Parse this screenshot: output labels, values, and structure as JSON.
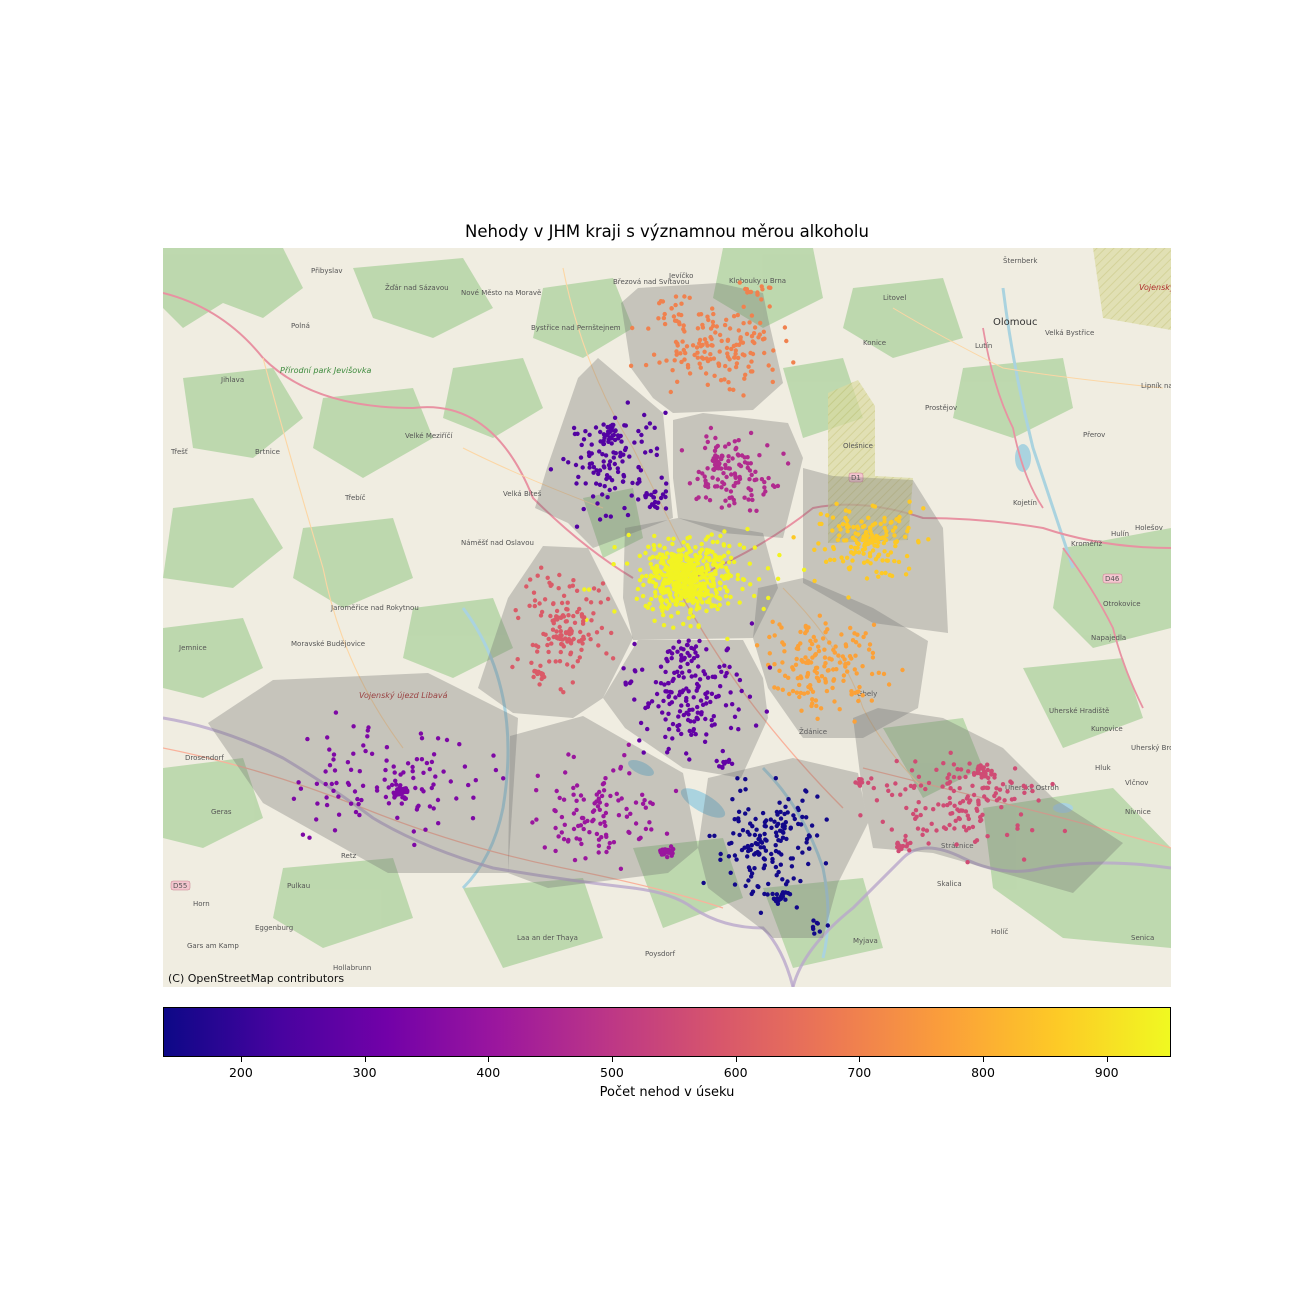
{
  "title": "Nehody v JHM kraji s významnou měrou alkoholu",
  "attribution": "(C) OpenStreetMap contributors",
  "colorbar": {
    "label": "Počet nehod v úseku",
    "min": 137,
    "max": 952,
    "ticks": [
      200,
      300,
      400,
      500,
      600,
      700,
      800,
      900
    ],
    "colormap": "plasma",
    "colors": [
      "#0d0887",
      "#46039f",
      "#7201a8",
      "#9c179e",
      "#bd3786",
      "#d8576b",
      "#ed7953",
      "#fb9f3a",
      "#fdca26",
      "#f0f921"
    ]
  },
  "map_labels": [
    {
      "text": "Přibyslav",
      "kind": "town"
    },
    {
      "text": "Žďár nad Sázavou",
      "kind": "town"
    },
    {
      "text": "Nové Město na Moravě",
      "kind": "town"
    },
    {
      "text": "Polná",
      "kind": "town"
    },
    {
      "text": "Bystřice nad Pernštejnem",
      "kind": "town"
    },
    {
      "text": "Jihlava",
      "kind": "town"
    },
    {
      "text": "Velké Meziříčí",
      "kind": "town"
    },
    {
      "text": "Brtnice",
      "kind": "town"
    },
    {
      "text": "Třešť",
      "kind": "town"
    },
    {
      "text": "Velká Bíteš",
      "kind": "town"
    },
    {
      "text": "Třebíč",
      "kind": "town"
    },
    {
      "text": "Náměšť nad Oslavou",
      "kind": "town"
    },
    {
      "text": "Jaroměřice nad Rokytnou",
      "kind": "town"
    },
    {
      "text": "Moravské Budějovice",
      "kind": "town"
    },
    {
      "text": "Jemnice",
      "kind": "town"
    },
    {
      "text": "Drosendorf",
      "kind": "town"
    },
    {
      "text": "Geras",
      "kind": "town"
    },
    {
      "text": "Retz",
      "kind": "town"
    },
    {
      "text": "Pulkau",
      "kind": "town"
    },
    {
      "text": "Horn",
      "kind": "town"
    },
    {
      "text": "Eggenburg",
      "kind": "town"
    },
    {
      "text": "Gars am Kamp",
      "kind": "town"
    },
    {
      "text": "Laa an der Thaya",
      "kind": "town"
    },
    {
      "text": "Poysdorf",
      "kind": "town"
    },
    {
      "text": "Hollabrunn",
      "kind": "town"
    },
    {
      "text": "Olomouc",
      "kind": "city"
    },
    {
      "text": "Šternberk",
      "kind": "town"
    },
    {
      "text": "Litovel",
      "kind": "town"
    },
    {
      "text": "Velká Bystřice",
      "kind": "town"
    },
    {
      "text": "Konice",
      "kind": "town"
    },
    {
      "text": "Lutín",
      "kind": "town"
    },
    {
      "text": "Prostějov",
      "kind": "town"
    },
    {
      "text": "Přerov",
      "kind": "town"
    },
    {
      "text": "Lipník nad Bečvou",
      "kind": "town"
    },
    {
      "text": "Kojetín",
      "kind": "town"
    },
    {
      "text": "Hulín",
      "kind": "town"
    },
    {
      "text": "Holešov",
      "kind": "town"
    },
    {
      "text": "Kroměříž",
      "kind": "town"
    },
    {
      "text": "Otrokovice",
      "kind": "town"
    },
    {
      "text": "Napajedla",
      "kind": "town"
    },
    {
      "text": "Uherské Hradiště",
      "kind": "town"
    },
    {
      "text": "Kunovice",
      "kind": "town"
    },
    {
      "text": "Uherský Brod",
      "kind": "town"
    },
    {
      "text": "Hluk",
      "kind": "town"
    },
    {
      "text": "Vlčnov",
      "kind": "town"
    },
    {
      "text": "Nivnice",
      "kind": "town"
    },
    {
      "text": "Uherský Ostroh",
      "kind": "town"
    },
    {
      "text": "Strážnice",
      "kind": "town"
    },
    {
      "text": "Skalica",
      "kind": "town"
    },
    {
      "text": "Holíč",
      "kind": "town"
    },
    {
      "text": "Senica",
      "kind": "town"
    },
    {
      "text": "Myjava",
      "kind": "town"
    },
    {
      "text": "Gbely",
      "kind": "town"
    },
    {
      "text": "Ždánice",
      "kind": "town"
    },
    {
      "text": "Klobouky u Brna",
      "kind": "town"
    },
    {
      "text": "Jevíčko",
      "kind": "town"
    },
    {
      "text": "Březová nad Svitavou",
      "kind": "town"
    },
    {
      "text": "Olešnice",
      "kind": "town"
    },
    {
      "text": "Vojenský újezd Březina",
      "kind": "military"
    },
    {
      "text": "Vojenský újezd Libavá",
      "kind": "military"
    },
    {
      "text": "Přírodní park Jevišovka",
      "kind": "park"
    },
    {
      "text": "D1",
      "kind": "road"
    },
    {
      "text": "D46",
      "kind": "road"
    },
    {
      "text": "D55",
      "kind": "road"
    }
  ]
}
